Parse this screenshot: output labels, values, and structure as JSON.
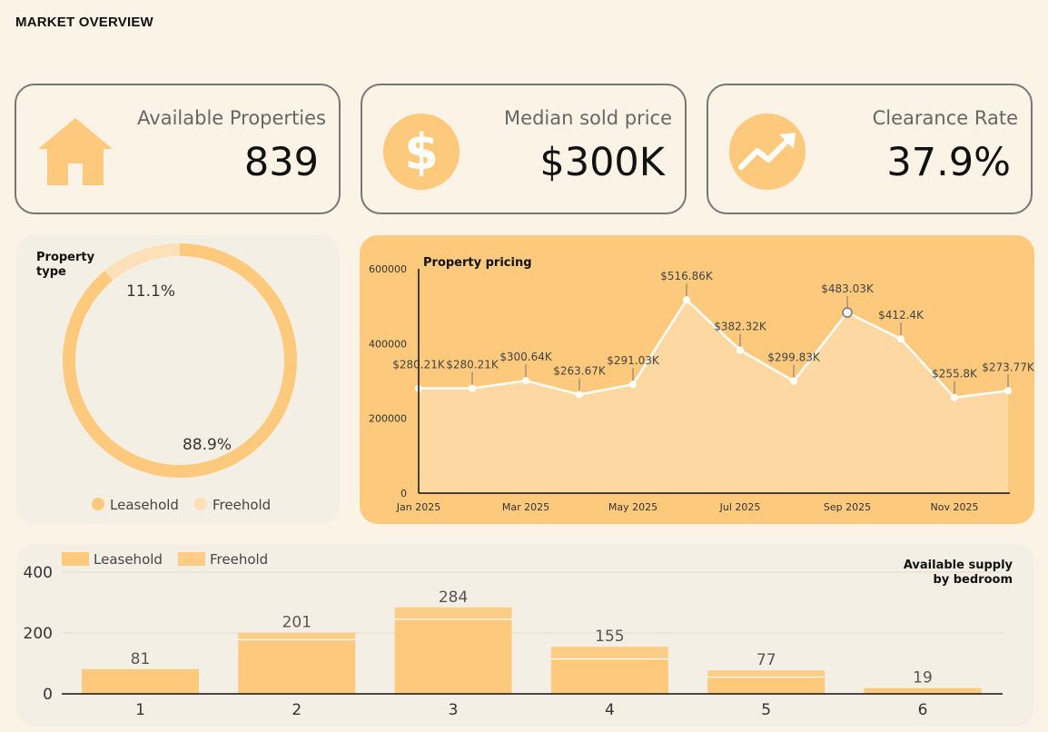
{
  "page_title": "MARKET OVERVIEW",
  "kpis": [
    {
      "label": "Available Properties",
      "value": "839",
      "icon": "house-icon"
    },
    {
      "label": "Median sold price",
      "value": "$300K",
      "icon": "dollar-icon"
    },
    {
      "label": "Clearance Rate",
      "value": "37.9%",
      "icon": "trending-up-icon"
    }
  ],
  "colors": {
    "background": "#fcf3e7",
    "leasehold": "#fdc97c",
    "freehold": "#fde0b8",
    "pricing_panel": "#fdc97c",
    "pricing_area": "#fdd8a2",
    "panel": "#f4efe4"
  },
  "chart_data": [
    {
      "type": "pie",
      "title": "Property type",
      "labels": [
        "Leasehold",
        "Freehold"
      ],
      "values": [
        88.9,
        11.1
      ],
      "value_labels": [
        "88.9%",
        "11.1%"
      ],
      "legend": "bottom"
    },
    {
      "type": "area",
      "title": "Property pricing",
      "x": [
        "Jan 2025",
        "Feb 2025",
        "Mar 2025",
        "Apr 2025",
        "May 2025",
        "Jun 2025",
        "Jul 2025",
        "Aug 2025",
        "Sep 2025",
        "Oct 2025",
        "Nov 2025",
        "Dec 2025"
      ],
      "values": [
        280210,
        280210,
        300640,
        263670,
        291030,
        516860,
        382320,
        299830,
        483030,
        412400,
        255800,
        273770
      ],
      "value_labels": [
        "$280.21K",
        "$280.21K",
        "$300.64K",
        "$263.67K",
        "$291.03K",
        "$516.86K",
        "$382.32K",
        "$299.83K",
        "$483.03K",
        "$412.4K",
        "$255.8K",
        "$273.77K"
      ],
      "x_tick_labels": [
        "Jan 2025",
        "Mar 2025",
        "May 2025",
        "Jul 2025",
        "Sep 2025",
        "Nov 2025"
      ],
      "y_ticks": [
        0,
        200000,
        400000,
        600000
      ],
      "y_tick_labels": [
        "0",
        "200000",
        "400000",
        "600000"
      ],
      "ylim": [
        0,
        600000
      ],
      "grid": false
    },
    {
      "type": "bar",
      "title": "Available supply by bedroom",
      "title_lines": [
        "Available supply",
        "by bedroom"
      ],
      "stacked": true,
      "categories": [
        "1",
        "2",
        "3",
        "4",
        "5",
        "6"
      ],
      "series": [
        {
          "name": "Leasehold",
          "values": [
            81,
            178,
            245,
            115,
            55,
            19
          ]
        },
        {
          "name": "Freehold",
          "values": [
            0,
            23,
            39,
            40,
            22,
            0
          ]
        }
      ],
      "totals": [
        81,
        201,
        284,
        155,
        77,
        19
      ],
      "total_labels": [
        "81",
        "201",
        "284",
        "155",
        "77",
        "19"
      ],
      "y_ticks": [
        0,
        200,
        400
      ],
      "y_tick_labels": [
        "0",
        "200",
        "400"
      ],
      "ylim": [
        0,
        420
      ],
      "legend": "top-left",
      "grid": true
    }
  ]
}
